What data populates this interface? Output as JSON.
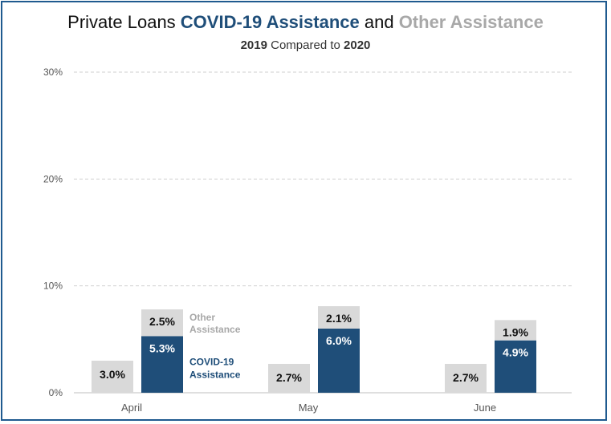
{
  "title": {
    "prefix": "Private Loans ",
    "covid": "COVID-19 Assistance",
    "middle": " and ",
    "other": "Other Assistance"
  },
  "subtitle": {
    "year1": "2019",
    "middle": " Compared to ",
    "year2": "2020"
  },
  "colors": {
    "covid": "#1f4e79",
    "other": "#d9d9d9",
    "year2019": "#d9d9d9",
    "title_other_text": "#a8a8a8",
    "frame": "#1f5a8f"
  },
  "chart_data": {
    "type": "bar",
    "categories": [
      "April",
      "May",
      "June"
    ],
    "y_ticks": [
      "0%",
      "10%",
      "20%",
      "30%"
    ],
    "ylim": [
      0,
      30
    ],
    "grid": true,
    "series": [
      {
        "name": "2019",
        "values": [
          3.0,
          2.7,
          2.7
        ],
        "labels": [
          "3.0%",
          "2.7%",
          "2.7%"
        ]
      },
      {
        "name": "COVID-19 Assistance",
        "values": [
          5.3,
          6.0,
          4.9
        ],
        "labels": [
          "5.3%",
          "6.0%",
          "4.9%"
        ]
      },
      {
        "name": "Other Assistance",
        "values": [
          2.5,
          2.1,
          1.9
        ],
        "labels": [
          "2.5%",
          "2.1%",
          "1.9%"
        ]
      }
    ],
    "annotations": {
      "other_line1": "Other",
      "other_line2": "Assistance",
      "covid_line1": "COVID-19",
      "covid_line2": "Assistance"
    }
  }
}
